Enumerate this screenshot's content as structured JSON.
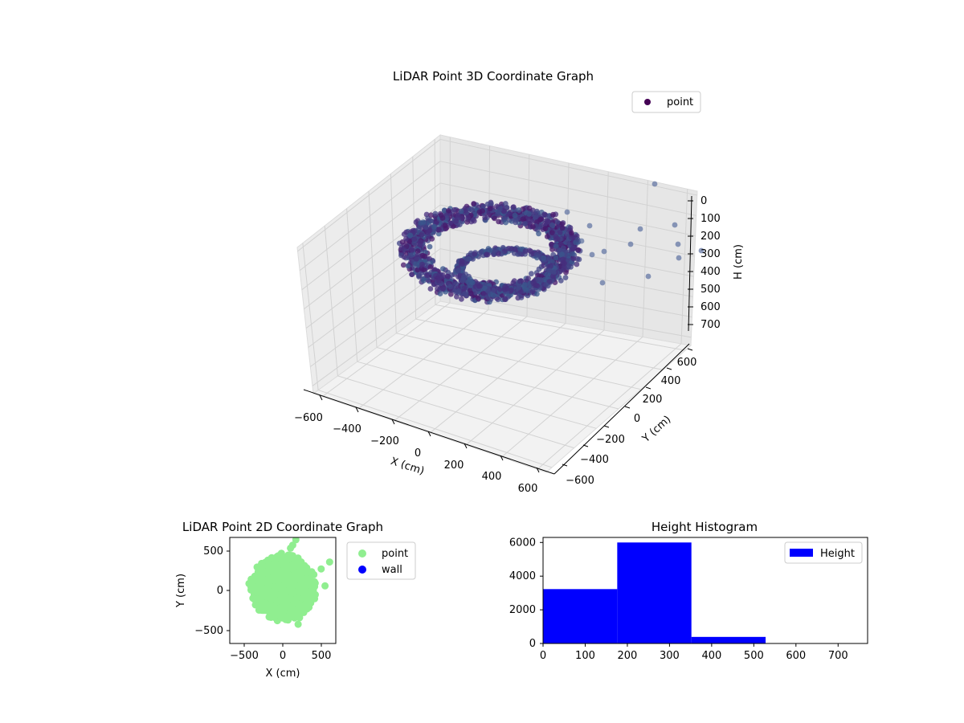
{
  "colors": {
    "point_3d": "#440154",
    "point_2d": "#90ee90",
    "wall": "#0000ff",
    "histogram": "#0000ff"
  },
  "chart_data": [
    {
      "type": "scatter",
      "projection": "3d",
      "title": "LiDAR Point 3D Coordinate Graph",
      "xlabel": "X (cm)",
      "ylabel": "Y (cm)",
      "zlabel": "H (cm)",
      "xticks": [
        "−600",
        "−400",
        "−200",
        "0",
        "200",
        "400",
        "600"
      ],
      "yticks": [
        "−600",
        "−400",
        "−200",
        "0",
        "200",
        "400",
        "600"
      ],
      "zticks": [
        "0",
        "100",
        "200",
        "300",
        "400",
        "500",
        "600",
        "700"
      ],
      "xlim": [
        -650,
        650
      ],
      "ylim": [
        -650,
        650
      ],
      "zlim": [
        750,
        0
      ],
      "z_inverted": true,
      "legend": [
        "point"
      ],
      "legend_position": "upper-right",
      "colormap": "viridis",
      "grid": true,
      "series": [
        {
          "name": "point",
          "shape": "ring",
          "ring_radius_range": [
            300,
            500
          ],
          "height_range": [
            150,
            350
          ],
          "approx_count": 9600,
          "outliers": [
            {
              "x": 600,
              "y": 500,
              "z": 100
            },
            {
              "x": 550,
              "y": 300,
              "z": 200
            },
            {
              "x": 500,
              "y": 400,
              "z": 250
            },
            {
              "x": 420,
              "y": 150,
              "z": 350
            },
            {
              "x": 380,
              "y": 0,
              "z": 300
            },
            {
              "x": 300,
              "y": 100,
              "z": 320
            },
            {
              "x": 250,
              "y": -100,
              "z": 420
            },
            {
              "x": 620,
              "y": 350,
              "z": 280
            }
          ]
        }
      ]
    },
    {
      "type": "scatter",
      "title": "LiDAR Point 2D Coordinate Graph",
      "xlabel": "X (cm)",
      "ylabel": "Y (cm)",
      "xticks": [
        "−500",
        "0",
        "500"
      ],
      "yticks": [
        "500",
        "0",
        "−500"
      ],
      "xlim": [
        -690,
        690
      ],
      "ylim": [
        -690,
        690
      ],
      "legend": [
        "point",
        "wall"
      ],
      "legend_position": "outside-right",
      "series": [
        {
          "name": "point",
          "shape": "disc",
          "center": [
            0,
            0
          ],
          "radius": 400,
          "outliers": [
            [
              610,
              370
            ],
            [
              130,
              590
            ],
            [
              170,
              660
            ],
            [
              550,
              60
            ],
            [
              500,
              280
            ],
            [
              100,
              550
            ],
            [
              -440,
              90
            ],
            [
              200,
              -440
            ]
          ]
        },
        {
          "name": "wall",
          "x": [],
          "y": []
        }
      ]
    },
    {
      "type": "bar",
      "title": "Height Histogram",
      "xlabel": "",
      "ylabel": "",
      "xticks": [
        "0",
        "100",
        "200",
        "300",
        "400",
        "500",
        "600",
        "700"
      ],
      "yticks": [
        "0",
        "2000",
        "4000",
        "6000"
      ],
      "xlim": [
        0,
        770
      ],
      "ylim": [
        0,
        6300
      ],
      "legend": [
        "Height"
      ],
      "legend_position": "upper-right",
      "series": [
        {
          "name": "Height",
          "bins": [
            0,
            176,
            352,
            528,
            704
          ],
          "values": [
            3230,
            6000,
            390,
            0
          ]
        }
      ]
    }
  ]
}
